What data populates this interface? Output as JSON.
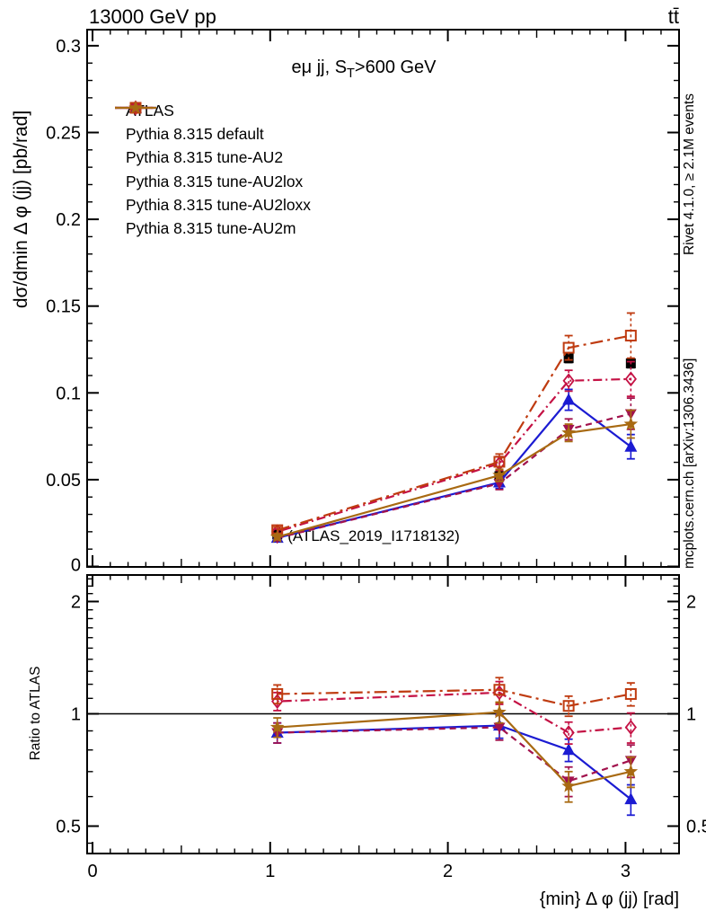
{
  "chart_data": {
    "type": "line",
    "header": {
      "left": "13000 GeV pp",
      "right": "tt̄"
    },
    "subtitle": {
      "prefix": "eμ jj, S",
      "sub": "T",
      "suffix": ">600 GeV"
    },
    "watermark": "(ATLAS_2019_I1718132)",
    "side_notes": {
      "top": "Rivet 4.1.0, ≥ 2.1M events",
      "bottom": "mcplots.cern.ch [arXiv:1306.3436]"
    },
    "axes": {
      "xlabel": "{min} Δ φ (jj) [rad]",
      "ylabel_main": "dσ/dmin Δ φ (jj) [pb/rad]",
      "ylabel_ratio": "Ratio to ATLAS",
      "xlim": [
        -0.03,
        3.3
      ],
      "x_ticks": [
        0,
        1,
        2,
        3
      ],
      "x_tick_labels": [
        "0",
        "1",
        "2",
        "3"
      ],
      "x_minor_step": 0.1,
      "ylim_main": [
        0,
        0.309
      ],
      "y_ticks_main": [
        0,
        0.05,
        0.1,
        0.15,
        0.2,
        0.25,
        0.3
      ],
      "y_tick_labels_main": [
        "0",
        "0.05",
        "0.1",
        "0.15",
        "0.2",
        "0.25",
        "0.3"
      ],
      "y_minor_step_main": 0.01,
      "ratio_scale": "log",
      "ylim_ratio": [
        0.42,
        2.36
      ],
      "y_ticks_ratio": [
        0.5,
        1,
        2
      ],
      "y_tick_labels_ratio": [
        "0.5",
        "1",
        "2"
      ],
      "y_minor_ticks_ratio": [
        0.45,
        0.6,
        0.7,
        0.8,
        0.9,
        1.1,
        1.2,
        1.3,
        1.4,
        1.5,
        1.6,
        1.7,
        1.8,
        1.9,
        2.1,
        2.2,
        2.3
      ],
      "ratio_reference": 1
    },
    "x": [
      1.04,
      2.29,
      2.68,
      3.03
    ],
    "series": [
      {
        "name": "ATLAS",
        "color": "#000000",
        "marker": "square_filled",
        "line": "none",
        "dash": null,
        "values": [
          0.0185,
          0.052,
          0.12,
          0.117
        ],
        "errors": [
          0.001,
          0.002,
          0.0025,
          0.0025
        ],
        "ratio": null,
        "ratio_err": null
      },
      {
        "name": "Pythia 8.315 default",
        "color": "#1b1bd2",
        "marker": "triangle_up",
        "line": "solid",
        "dash": null,
        "values": [
          0.0165,
          0.0484,
          0.096,
          0.069
        ],
        "errors": [
          0.0015,
          0.0035,
          0.006,
          0.007
        ],
        "ratio": [
          0.89,
          0.93,
          0.8,
          0.59
        ],
        "ratio_err": [
          0.055,
          0.07,
          0.055,
          0.055
        ]
      },
      {
        "name": "Pythia 8.315 tune-AU2",
        "color": "#a2124d",
        "marker": "triangle_down",
        "line": "dash",
        "dash": "7 5",
        "values": [
          0.0164,
          0.0478,
          0.079,
          0.088
        ],
        "errors": [
          0.0015,
          0.0035,
          0.006,
          0.009
        ],
        "ratio": [
          0.89,
          0.92,
          0.66,
          0.75
        ],
        "ratio_err": [
          0.055,
          0.07,
          0.06,
          0.075
        ]
      },
      {
        "name": "Pythia 8.315 tune-AU2lox",
        "color": "#c41144",
        "marker": "diamond_open",
        "line": "dashdot",
        "dash": "2 4 10 4",
        "values": [
          0.02,
          0.0593,
          0.107,
          0.108
        ],
        "errors": [
          0.0015,
          0.004,
          0.006,
          0.01
        ],
        "ratio": [
          1.08,
          1.14,
          0.89,
          0.92
        ],
        "ratio_err": [
          0.06,
          0.08,
          0.06,
          0.085
        ]
      },
      {
        "name": "Pythia 8.315 tune-AU2loxx",
        "color": "#bf3b10",
        "marker": "square_open",
        "line": "dashdot",
        "dash": "14 5 3 5",
        "values": [
          0.0209,
          0.0603,
          0.126,
          0.133
        ],
        "errors": [
          0.0018,
          0.0045,
          0.007,
          0.013
        ],
        "ratio": [
          1.13,
          1.16,
          1.05,
          1.13
        ],
        "ratio_err": [
          0.065,
          0.09,
          0.065,
          0.08
        ]
      },
      {
        "name": "Pythia 8.315 tune-AU2m",
        "color": "#a86a12",
        "marker": "star",
        "line": "solid",
        "dash": null,
        "values": [
          0.017,
          0.0525,
          0.077,
          0.082
        ],
        "errors": [
          0.0015,
          0.0035,
          0.005,
          0.008
        ],
        "ratio": [
          0.92,
          1.01,
          0.64,
          0.7
        ],
        "ratio_err": [
          0.055,
          0.065,
          0.06,
          0.065
        ]
      }
    ]
  }
}
